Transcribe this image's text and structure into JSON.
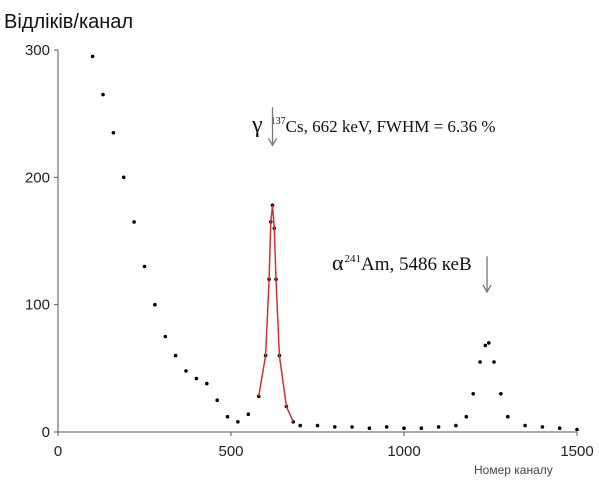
{
  "chart_data": {
    "type": "scatter",
    "ylabel": "Відліків/канал",
    "xlabel": "Номер каналу",
    "xlim": [
      0,
      1500
    ],
    "ylim": [
      0,
      300
    ],
    "x_ticks": [
      "0",
      "500",
      "1000",
      "1500"
    ],
    "y_ticks": [
      "0",
      "100",
      "200",
      "300"
    ],
    "grid": false,
    "series": [
      {
        "color": "#000000",
        "fit_color": "#cc3333",
        "x": [
          100,
          130,
          160,
          190,
          220,
          250,
          280,
          310,
          340,
          370,
          400,
          430,
          460,
          490,
          520,
          550,
          580,
          600,
          610,
          615,
          620,
          625,
          630,
          640,
          660,
          680,
          700,
          750,
          800,
          850,
          900,
          950,
          1000,
          1050,
          1100,
          1150,
          1180,
          1200,
          1220,
          1235,
          1245,
          1260,
          1280,
          1300,
          1350,
          1400,
          1450,
          1500
        ],
        "y": [
          295,
          265,
          235,
          200,
          165,
          130,
          100,
          75,
          60,
          48,
          42,
          38,
          25,
          12,
          8,
          14,
          28,
          60,
          120,
          165,
          178,
          160,
          120,
          60,
          20,
          8,
          5,
          5,
          4,
          4,
          3,
          4,
          3,
          3,
          4,
          5,
          12,
          30,
          55,
          68,
          70,
          55,
          30,
          12,
          5,
          4,
          3,
          2
        ]
      }
    ],
    "annotations": [
      {
        "label": "γ",
        "text": "Cs, 662 keV, FWHM = 6.36 %",
        "superscript": "137",
        "arrow_x": 620,
        "arrow_y_top": 255,
        "arrow_y_bottom": 225
      },
      {
        "label": "α",
        "text": "Am, 5486 кеВ",
        "superscript": "241",
        "arrow_x": 1240,
        "arrow_y_top": 138,
        "arrow_y_bottom": 110
      }
    ]
  }
}
